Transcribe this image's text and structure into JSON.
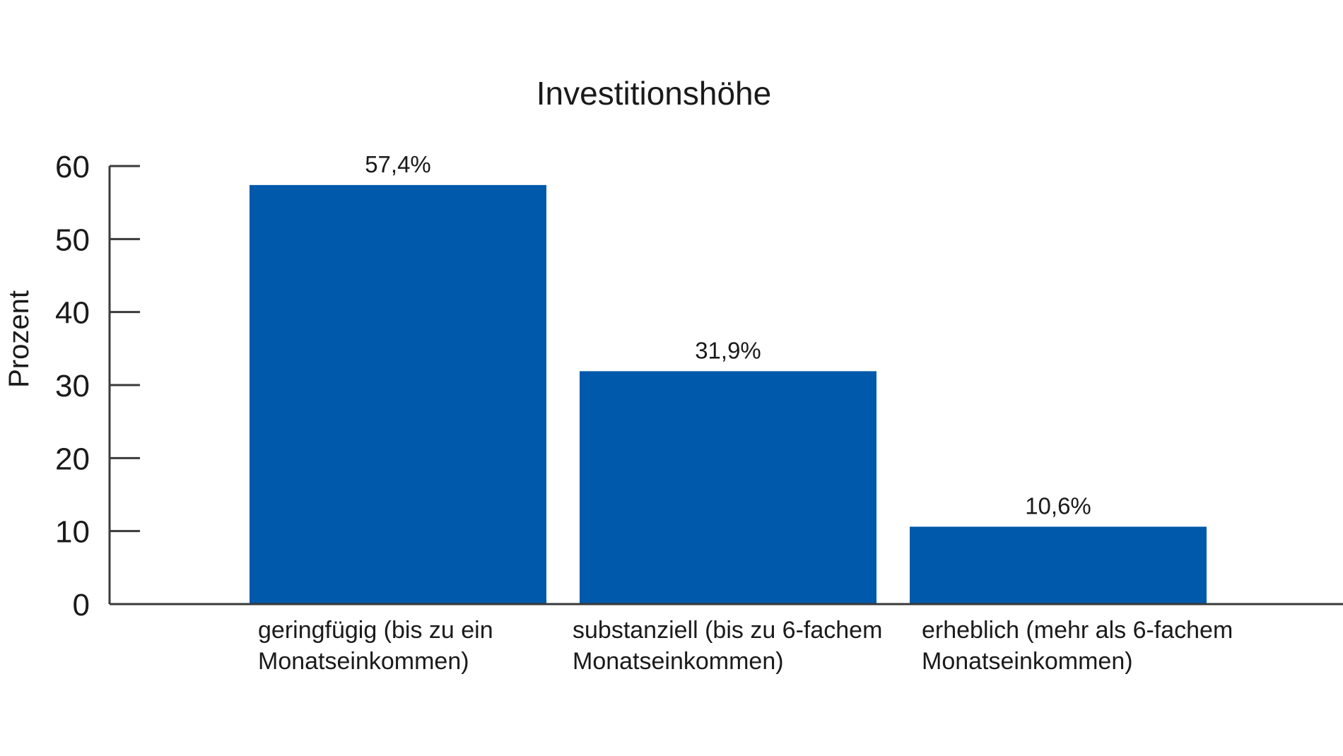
{
  "chart_data": {
    "type": "bar",
    "title": "Investitionshöhe",
    "ylabel": "Prozent",
    "xlabel": "",
    "ylim": [
      0,
      60
    ],
    "yticks": [
      0,
      10,
      20,
      30,
      40,
      50,
      60
    ],
    "categories": [
      [
        "geringfügig (bis zu ein",
        "Monatseinkommen)"
      ],
      [
        "substanziell (bis zu 6-fachem",
        "Monatseinkommen)"
      ],
      [
        "erheblich (mehr als 6-fachem",
        "Monatseinkommen)"
      ]
    ],
    "values": [
      57.4,
      31.9,
      10.6
    ],
    "value_labels": [
      "57,4%",
      "31,9%",
      "10,6%"
    ],
    "bar_color": "#0059ab",
    "grid": false,
    "legend": false
  }
}
